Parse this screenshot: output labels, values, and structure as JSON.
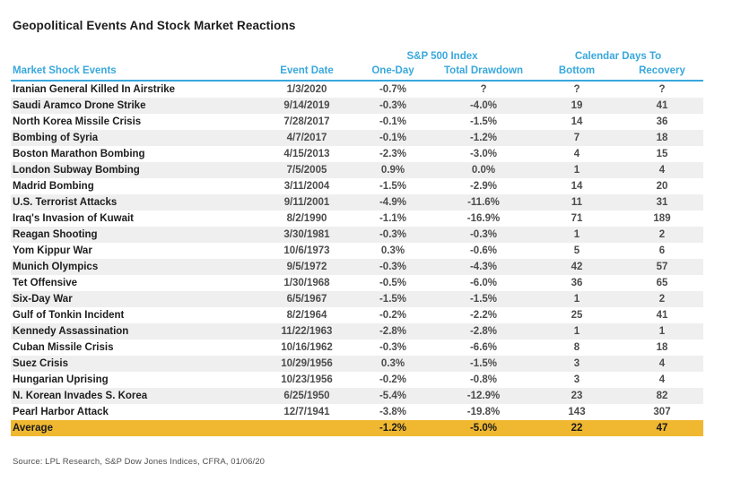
{
  "theme": {
    "accent_blue": "#38A8DC",
    "stripe_gray": "#EFEFEF",
    "highlight_yellow": "#F0B831",
    "text_black": "#1d1d1d",
    "number_gray": "#4c4c4c"
  },
  "chart_data": {
    "type": "table",
    "title": "Geopolitical Events And Stock Market Reactions",
    "column_groups": [
      {
        "label": "S&P 500 Index",
        "spans": [
          "One-Day",
          "Total Drawdown"
        ]
      },
      {
        "label": "Calendar Days To",
        "spans": [
          "Bottom",
          "Recovery"
        ]
      }
    ],
    "columns": [
      "Market Shock Events",
      "Event Date",
      "One-Day",
      "Total Drawdown",
      "Bottom",
      "Recovery"
    ],
    "rows": [
      [
        "Iranian General Killed In Airstrike",
        "1/3/2020",
        "-0.7%",
        "?",
        "?",
        "?"
      ],
      [
        "Saudi Aramco Drone Strike",
        "9/14/2019",
        "-0.3%",
        "-4.0%",
        "19",
        "41"
      ],
      [
        "North Korea Missile Crisis",
        "7/28/2017",
        "-0.1%",
        "-1.5%",
        "14",
        "36"
      ],
      [
        "Bombing of Syria",
        "4/7/2017",
        "-0.1%",
        "-1.2%",
        "7",
        "18"
      ],
      [
        "Boston Marathon Bombing",
        "4/15/2013",
        "-2.3%",
        "-3.0%",
        "4",
        "15"
      ],
      [
        "London Subway Bombing",
        "7/5/2005",
        "0.9%",
        "0.0%",
        "1",
        "4"
      ],
      [
        "Madrid Bombing",
        "3/11/2004",
        "-1.5%",
        "-2.9%",
        "14",
        "20"
      ],
      [
        "U.S. Terrorist Attacks",
        "9/11/2001",
        "-4.9%",
        "-11.6%",
        "11",
        "31"
      ],
      [
        "Iraq's Invasion of Kuwait",
        "8/2/1990",
        "-1.1%",
        "-16.9%",
        "71",
        "189"
      ],
      [
        "Reagan Shooting",
        "3/30/1981",
        "-0.3%",
        "-0.3%",
        "1",
        "2"
      ],
      [
        "Yom Kippur War",
        "10/6/1973",
        "0.3%",
        "-0.6%",
        "5",
        "6"
      ],
      [
        "Munich Olympics",
        "9/5/1972",
        "-0.3%",
        "-4.3%",
        "42",
        "57"
      ],
      [
        "Tet Offensive",
        "1/30/1968",
        "-0.5%",
        "-6.0%",
        "36",
        "65"
      ],
      [
        "Six-Day War",
        "6/5/1967",
        "-1.5%",
        "-1.5%",
        "1",
        "2"
      ],
      [
        "Gulf of Tonkin Incident",
        "8/2/1964",
        "-0.2%",
        "-2.2%",
        "25",
        "41"
      ],
      [
        "Kennedy Assassination",
        "11/22/1963",
        "-2.8%",
        "-2.8%",
        "1",
        "1"
      ],
      [
        "Cuban Missile Crisis",
        "10/16/1962",
        "-0.3%",
        "-6.6%",
        "8",
        "18"
      ],
      [
        "Suez Crisis",
        "10/29/1956",
        "0.3%",
        "-1.5%",
        "3",
        "4"
      ],
      [
        "Hungarian Uprising",
        "10/23/1956",
        "-0.2%",
        "-0.8%",
        "3",
        "4"
      ],
      [
        "N. Korean Invades S. Korea",
        "6/25/1950",
        "-5.4%",
        "-12.9%",
        "23",
        "82"
      ],
      [
        "Pearl Harbor Attack",
        "12/7/1941",
        "-3.8%",
        "-19.8%",
        "143",
        "307"
      ]
    ],
    "average_row": [
      "Average",
      "",
      "-1.2%",
      "-5.0%",
      "22",
      "47"
    ],
    "source": "Source: LPL Research, S&P Dow Jones Indices, CFRA, 01/06/20"
  }
}
